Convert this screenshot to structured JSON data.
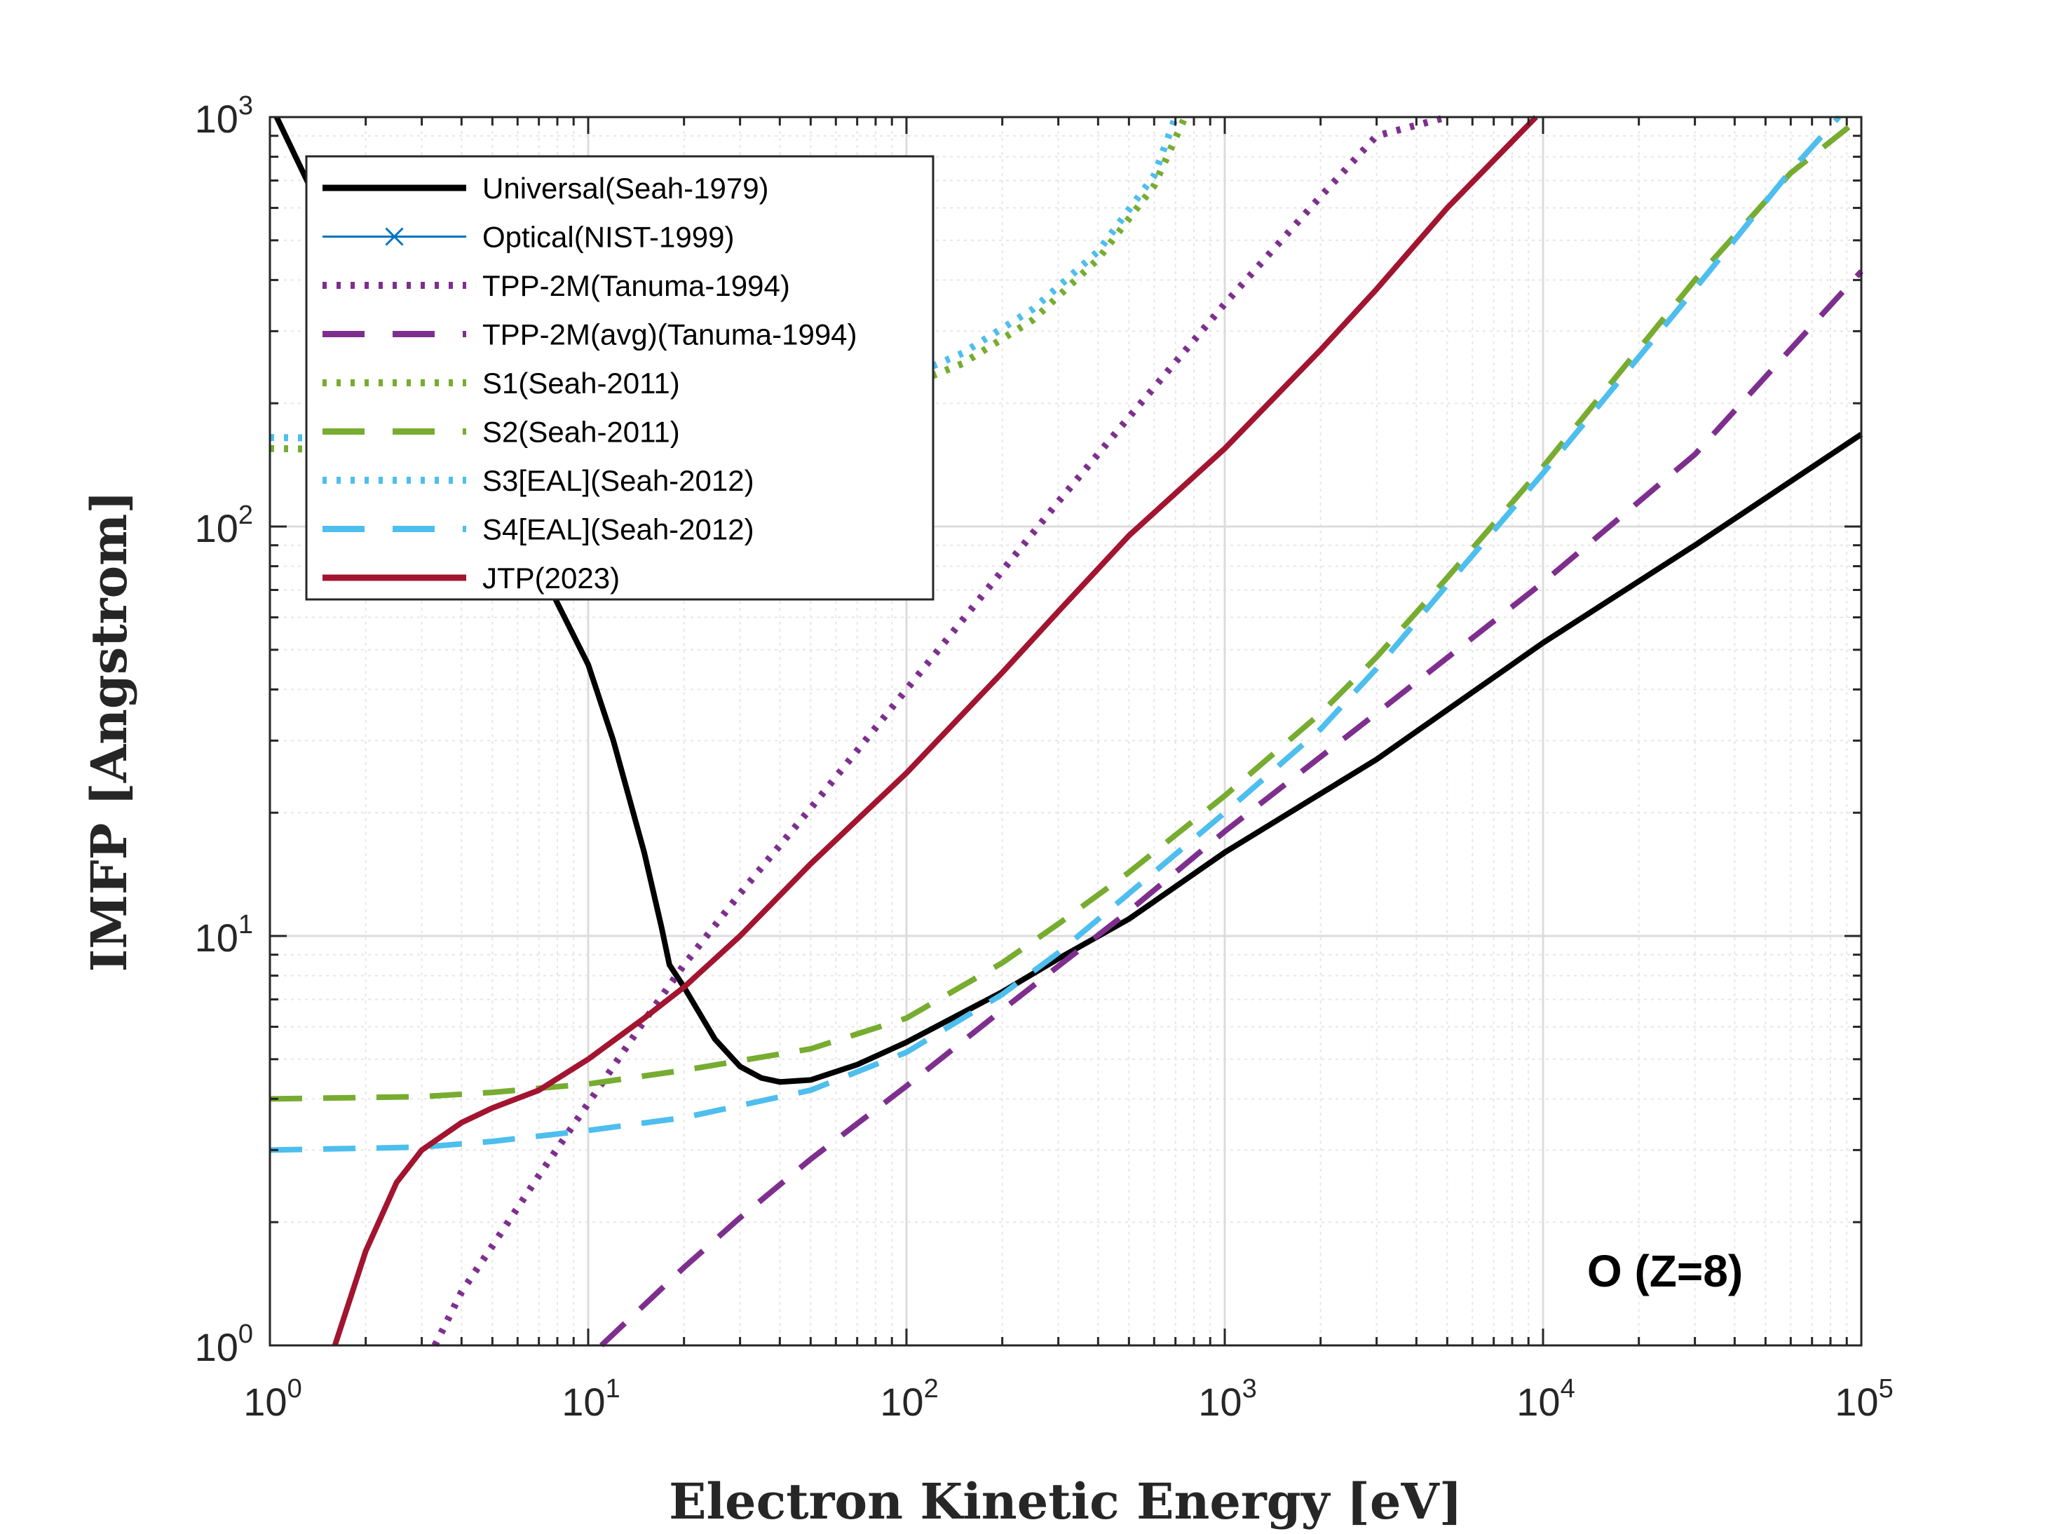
{
  "chart_data": {
    "type": "line",
    "xlabel": "Electron Kinetic Energy [eV]",
    "ylabel": "IMFP [Angstrom]",
    "xscale": "log",
    "yscale": "log",
    "xlim": [
      1,
      100000
    ],
    "ylim": [
      1,
      1000
    ],
    "grid": true,
    "minor_grid": true,
    "legend_position": "top-left",
    "annotation": "O (Z=8)",
    "x_ticks": [
      {
        "base": "10",
        "exp": "0"
      },
      {
        "base": "10",
        "exp": "1"
      },
      {
        "base": "10",
        "exp": "2"
      },
      {
        "base": "10",
        "exp": "3"
      },
      {
        "base": "10",
        "exp": "4"
      },
      {
        "base": "10",
        "exp": "5"
      }
    ],
    "y_ticks": [
      {
        "base": "10",
        "exp": "0"
      },
      {
        "base": "10",
        "exp": "1"
      },
      {
        "base": "10",
        "exp": "2"
      },
      {
        "base": "10",
        "exp": "3"
      }
    ],
    "series": [
      {
        "name": "Universal(Seah-1979)",
        "color": "#000000",
        "style": "solid",
        "points": [
          [
            1.05,
            1000
          ],
          [
            1.5,
            560
          ],
          [
            2,
            380
          ],
          [
            3,
            230
          ],
          [
            5,
            125
          ],
          [
            7,
            80
          ],
          [
            10,
            46
          ],
          [
            12,
            30
          ],
          [
            15,
            16
          ],
          [
            17,
            10.5
          ],
          [
            18,
            8.5
          ],
          [
            20,
            7.5
          ],
          [
            25,
            5.6
          ],
          [
            30,
            4.8
          ],
          [
            35,
            4.5
          ],
          [
            40,
            4.4
          ],
          [
            50,
            4.45
          ],
          [
            70,
            4.85
          ],
          [
            100,
            5.5
          ],
          [
            200,
            7.3
          ],
          [
            300,
            8.8
          ],
          [
            500,
            11
          ],
          [
            1000,
            16
          ],
          [
            3000,
            27
          ],
          [
            10000,
            52
          ],
          [
            30000,
            90
          ],
          [
            100000,
            168
          ]
        ]
      },
      {
        "name": "Optical(NIST-1999)",
        "color": "#0072BD",
        "style": "solid-x",
        "points": []
      },
      {
        "name": "TPP-2M(Tanuma-1994)",
        "color": "#7E2F8E",
        "style": "dotted",
        "points": [
          [
            3.3,
            1
          ],
          [
            4,
            1.35
          ],
          [
            5,
            1.75
          ],
          [
            7,
            2.6
          ],
          [
            10,
            3.9
          ],
          [
            15,
            6.2
          ],
          [
            20,
            8.5
          ],
          [
            30,
            12.7
          ],
          [
            50,
            20.5
          ],
          [
            100,
            40
          ],
          [
            200,
            78
          ],
          [
            300,
            115
          ],
          [
            500,
            185
          ],
          [
            1000,
            350
          ],
          [
            2000,
            640
          ],
          [
            3000,
            900
          ],
          [
            5000,
            1000
          ]
        ]
      },
      {
        "name": "TPP-2M(avg)(Tanuma-1994)",
        "color": "#7E2F8E",
        "style": "dashed",
        "points": [
          [
            11,
            1
          ],
          [
            20,
            1.55
          ],
          [
            30,
            2.05
          ],
          [
            50,
            2.85
          ],
          [
            100,
            4.3
          ],
          [
            200,
            6.6
          ],
          [
            500,
            11.5
          ],
          [
            1000,
            18
          ],
          [
            3000,
            35
          ],
          [
            10000,
            73
          ],
          [
            30000,
            150
          ],
          [
            100000,
            420
          ]
        ]
      },
      {
        "name": "S1(Seah-2011)",
        "color": "#77AC30",
        "style": "dotted",
        "points": [
          [
            1,
            155
          ],
          [
            2,
            154
          ],
          [
            5,
            152
          ],
          [
            10,
            152
          ],
          [
            20,
            158
          ],
          [
            40,
            175
          ],
          [
            80,
            205
          ],
          [
            150,
            250
          ],
          [
            250,
            320
          ],
          [
            400,
            450
          ],
          [
            600,
            680
          ],
          [
            750,
            1000
          ]
        ]
      },
      {
        "name": "S2(Seah-2011)",
        "color": "#77AC30",
        "style": "dashed",
        "points": [
          [
            1,
            4.0
          ],
          [
            3,
            4.05
          ],
          [
            5,
            4.15
          ],
          [
            10,
            4.35
          ],
          [
            20,
            4.7
          ],
          [
            50,
            5.3
          ],
          [
            100,
            6.3
          ],
          [
            200,
            8.6
          ],
          [
            300,
            10.7
          ],
          [
            500,
            14.3
          ],
          [
            1000,
            22
          ],
          [
            2000,
            35
          ],
          [
            3000,
            48
          ],
          [
            5000,
            75
          ],
          [
            10000,
            140
          ],
          [
            30000,
            400
          ],
          [
            60000,
            730
          ],
          [
            100000,
            1000
          ]
        ]
      },
      {
        "name": "S3[EAL](Seah-2012)",
        "color": "#4DBEEE",
        "style": "dotted",
        "points": [
          [
            1,
            165
          ],
          [
            2,
            164
          ],
          [
            5,
            163
          ],
          [
            10,
            164
          ],
          [
            20,
            170
          ],
          [
            40,
            185
          ],
          [
            80,
            215
          ],
          [
            150,
            265
          ],
          [
            250,
            340
          ],
          [
            400,
            470
          ],
          [
            600,
            720
          ],
          [
            700,
            1000
          ]
        ]
      },
      {
        "name": "S4[EAL](Seah-2012)",
        "color": "#4DBEEE",
        "style": "dashed",
        "points": [
          [
            1,
            3.0
          ],
          [
            3,
            3.05
          ],
          [
            5,
            3.15
          ],
          [
            10,
            3.35
          ],
          [
            20,
            3.6
          ],
          [
            50,
            4.2
          ],
          [
            100,
            5.2
          ],
          [
            200,
            7.2
          ],
          [
            300,
            9.1
          ],
          [
            500,
            12.7
          ],
          [
            1000,
            20
          ],
          [
            2000,
            32
          ],
          [
            3000,
            45
          ],
          [
            5000,
            72
          ],
          [
            10000,
            135
          ],
          [
            30000,
            380
          ],
          [
            60000,
            740
          ],
          [
            85000,
            1000
          ]
        ]
      },
      {
        "name": "JTP(2023)",
        "color": "#A2142F",
        "style": "solid",
        "points": [
          [
            1.6,
            1
          ],
          [
            2,
            1.7
          ],
          [
            2.5,
            2.5
          ],
          [
            3,
            3.0
          ],
          [
            4,
            3.5
          ],
          [
            5,
            3.8
          ],
          [
            7,
            4.2
          ],
          [
            10,
            5.0
          ],
          [
            15,
            6.3
          ],
          [
            20,
            7.5
          ],
          [
            30,
            10
          ],
          [
            50,
            15
          ],
          [
            100,
            25
          ],
          [
            200,
            44
          ],
          [
            300,
            62
          ],
          [
            500,
            95
          ],
          [
            1000,
            155
          ],
          [
            2000,
            270
          ],
          [
            3000,
            380
          ],
          [
            5000,
            600
          ],
          [
            9500,
            1000
          ]
        ]
      }
    ]
  }
}
